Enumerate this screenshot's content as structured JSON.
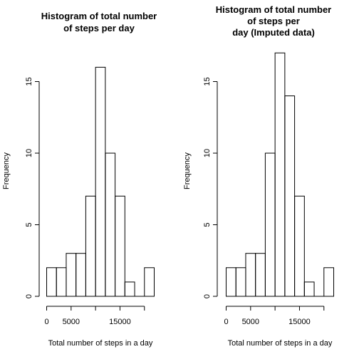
{
  "chart_data": [
    {
      "type": "bar",
      "title_lines": [
        "Histogram of total number",
        "of steps per day"
      ],
      "xlabel": "Total number of steps in a day",
      "ylabel": "Frequency",
      "bin_width": 2000,
      "bin_start": 0,
      "values": [
        2,
        2,
        3,
        3,
        7,
        16,
        10,
        7,
        1,
        0,
        2
      ],
      "xlim": [
        0,
        22000
      ],
      "ylim": [
        0,
        16
      ],
      "xticks": [
        0,
        5000,
        15000
      ],
      "yticks": [
        0,
        5,
        10,
        15
      ],
      "grid": false
    },
    {
      "type": "bar",
      "title_lines": [
        "Histogram of total number",
        "of steps per",
        "day (Imputed data)"
      ],
      "xlabel": "Total number of steps in a day",
      "ylabel": "Frequency",
      "bin_width": 2000,
      "bin_start": 0,
      "values": [
        2,
        2,
        3,
        3,
        10,
        17,
        14,
        7,
        1,
        0,
        2
      ],
      "xlim": [
        0,
        22000
      ],
      "ylim": [
        0,
        17
      ],
      "xticks": [
        0,
        5000,
        15000
      ],
      "yticks": [
        0,
        5,
        10,
        15
      ],
      "grid": false
    }
  ]
}
